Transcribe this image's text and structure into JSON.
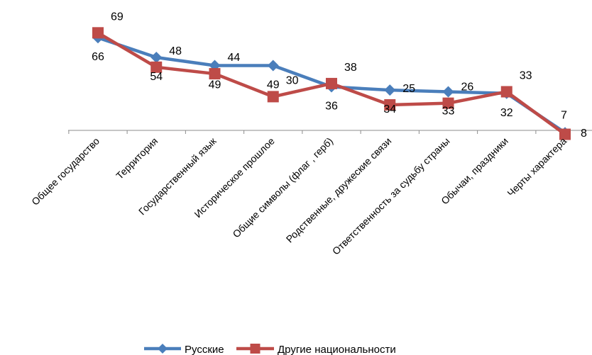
{
  "chart_data": {
    "type": "line",
    "title": "",
    "xlabel": "",
    "ylabel": "",
    "categories": [
      "Общее государство",
      "Территория",
      "Государственный язык",
      "Историческое прошлое",
      "Общие символы (флаг , герб)",
      "Родственные, дружеские связи",
      "Ответственность за судьбу страны",
      "Обычаи, праздники",
      "Черты характера"
    ],
    "series": [
      {
        "name": "Русские",
        "color": "#4a7ebb",
        "marker": "diamond",
        "plot_values": [
          66,
          54,
          49,
          49,
          36,
          34,
          33,
          32,
          8
        ],
        "labels": [
          "66",
          "54",
          "49",
          "49",
          "36",
          "34",
          "33",
          "32",
          "8"
        ]
      },
      {
        "name": "Другие национальности",
        "color": "#be4b48",
        "marker": "square",
        "plot_values": [
          69,
          48,
          44,
          30,
          38,
          25,
          26,
          33,
          7
        ],
        "labels": [
          "69",
          "48",
          "44",
          "30",
          "38",
          "25",
          "26",
          "33",
          "7"
        ]
      }
    ],
    "grid": false,
    "legend_position": "bottom"
  }
}
